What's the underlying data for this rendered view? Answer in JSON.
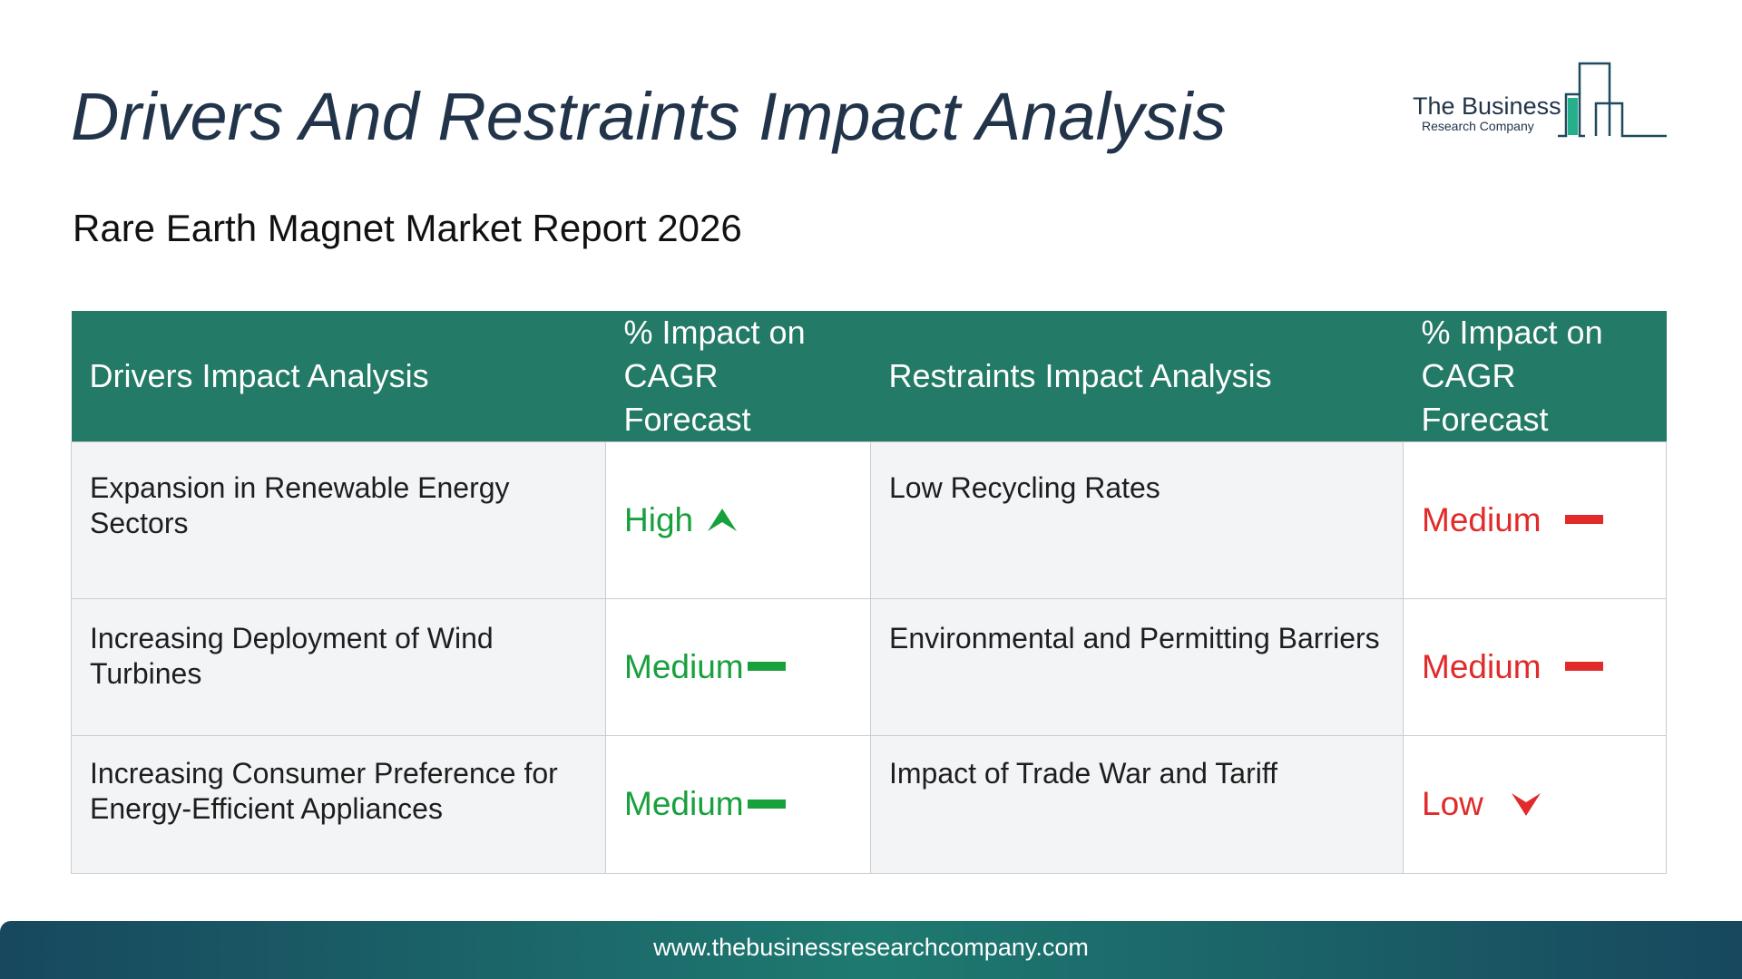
{
  "header": {
    "title": "Drivers And Restraints Impact Analysis",
    "subtitle": "Rare Earth Magnet Market Report 2026"
  },
  "logo": {
    "name": "The Business",
    "sub": "Research Company",
    "icon": "bar-chart-building-logo"
  },
  "table": {
    "headers": {
      "drivers": "Drivers Impact Analysis",
      "drivers_impact": "% Impact on CAGR Forecast",
      "restraints": "Restraints Impact Analysis",
      "restraints_impact": "% Impact on CAGR Forecast"
    },
    "rows": [
      {
        "driver": "Expansion in Renewable Energy Sectors",
        "driver_impact": "High",
        "driver_icon": "arrow-up-icon",
        "restraint": "Low Recycling Rates",
        "restraint_impact": "Medium",
        "restraint_icon": "dash-icon"
      },
      {
        "driver": "Increasing Deployment of Wind Turbines",
        "driver_impact": "Medium",
        "driver_icon": "dash-icon",
        "restraint": "Environmental and Permitting Barriers",
        "restraint_impact": "Medium",
        "restraint_icon": "dash-icon"
      },
      {
        "driver": "Increasing Consumer Preference for Energy-Efficient Appliances",
        "driver_impact": "Medium",
        "driver_icon": "dash-icon",
        "restraint": "Impact of Trade War and Tariff",
        "restraint_impact": "Low",
        "restraint_icon": "arrow-down-icon"
      }
    ]
  },
  "colors": {
    "header_bg": "#237a66",
    "driver_level": "#18a03c",
    "restraint_level": "#e12a2a",
    "title": "#22344a"
  },
  "footer": {
    "url": "www.thebusinessresearchcompany.com"
  }
}
